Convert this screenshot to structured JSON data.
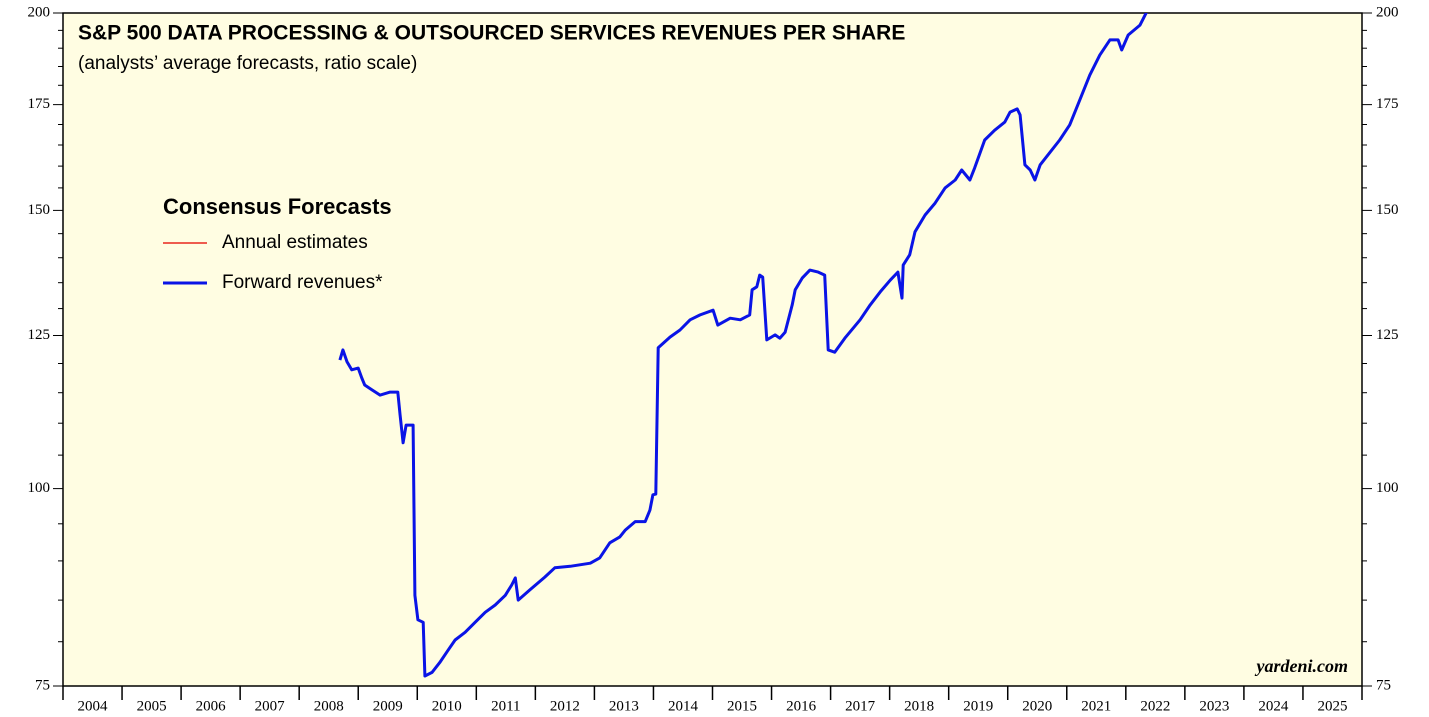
{
  "chart_data": {
    "type": "line",
    "title": "S&P 500 DATA PROCESSING & OUTSOURCED SERVICES REVENUES PER SHARE",
    "subtitle": "(analysts’ average forecasts, ratio scale)",
    "legend_title": "Consensus Forecasts",
    "annotation": "yardeni.com",
    "log_scale": true,
    "ylim": [
      75,
      200
    ],
    "yticks": [
      75,
      100,
      125,
      150,
      175,
      200
    ],
    "yminorticks": [
      80,
      85,
      90,
      95,
      105,
      110,
      115,
      120,
      130,
      135,
      140,
      145,
      155,
      160,
      165,
      170,
      180,
      185,
      190,
      195
    ],
    "xlim": [
      2004,
      2026
    ],
    "xticks": [
      2004,
      2005,
      2006,
      2007,
      2008,
      2009,
      2010,
      2011,
      2012,
      2013,
      2014,
      2015,
      2016,
      2017,
      2018,
      2019,
      2020,
      2021,
      2022,
      2023,
      2024,
      2025,
      2026
    ],
    "categories": [
      "2004",
      "2005",
      "2006",
      "2007",
      "2008",
      "2009",
      "2010",
      "2011",
      "2012",
      "2013",
      "2014",
      "2015",
      "2016",
      "2017",
      "2018",
      "2019",
      "2020",
      "2021",
      "2022",
      "2023",
      "2024",
      "2025"
    ],
    "series": [
      {
        "name": "Annual estimates",
        "color": "#e8261c",
        "x": [],
        "values": []
      },
      {
        "name": "Forward revenues*",
        "color": "#0a14e6",
        "x": [
          2008.69,
          2008.74,
          2008.81,
          2008.89,
          2009.0,
          2009.06,
          2009.11,
          2009.23,
          2009.37,
          2009.54,
          2009.67,
          2009.71,
          2009.76,
          2009.81,
          2009.86,
          2009.93,
          2009.96,
          2010.01,
          2010.1,
          2010.13,
          2010.25,
          2010.38,
          2010.52,
          2010.64,
          2010.81,
          2010.98,
          2011.15,
          2011.32,
          2011.49,
          2011.6,
          2011.66,
          2011.71,
          2011.91,
          2012.16,
          2012.33,
          2012.59,
          2012.93,
          2013.09,
          2013.26,
          2013.43,
          2013.52,
          2013.69,
          2013.86,
          2013.94,
          2013.99,
          2014.04,
          2014.08,
          2014.28,
          2014.45,
          2014.62,
          2014.79,
          2015.01,
          2015.09,
          2015.3,
          2015.47,
          2015.63,
          2015.67,
          2015.75,
          2015.8,
          2015.85,
          2015.92,
          2016.06,
          2016.14,
          2016.23,
          2016.35,
          2016.4,
          2016.52,
          2016.65,
          2016.79,
          2016.9,
          2016.96,
          2017.07,
          2017.24,
          2017.5,
          2017.67,
          2017.84,
          2018.01,
          2018.14,
          2018.21,
          2018.23,
          2018.34,
          2018.43,
          2018.6,
          2018.77,
          2018.94,
          2019.11,
          2019.22,
          2019.36,
          2019.44,
          2019.61,
          2019.78,
          2019.95,
          2020.04,
          2020.16,
          2020.21,
          2020.29,
          2020.38,
          2020.46,
          2020.55,
          2020.72,
          2020.88,
          2021.05,
          2021.22,
          2021.39,
          2021.56,
          2021.73,
          2021.87,
          2021.93,
          2022.04,
          2022.24,
          2022.37,
          2022.58
        ],
        "values": [
          120.6,
          122.4,
          120.3,
          118.9,
          119.2,
          117.5,
          116.3,
          115.5,
          114.6,
          115.1,
          115.1,
          111.3,
          106.9,
          109.7,
          109.7,
          109.7,
          85.6,
          82.6,
          82.3,
          76.1,
          76.5,
          77.6,
          79.0,
          80.2,
          81.1,
          82.3,
          83.5,
          84.4,
          85.6,
          86.9,
          87.8,
          85.0,
          86.3,
          87.9,
          89.1,
          89.3,
          89.7,
          90.4,
          92.4,
          93.2,
          94.1,
          95.3,
          95.3,
          96.9,
          99.1,
          99.2,
          122.8,
          124.7,
          126.0,
          127.9,
          128.8,
          129.7,
          126.9,
          128.2,
          127.9,
          128.8,
          133.6,
          134.2,
          136.5,
          136.1,
          124.2,
          125.1,
          124.5,
          125.6,
          130.7,
          133.6,
          135.9,
          137.5,
          137.1,
          136.5,
          122.4,
          122.0,
          124.5,
          127.9,
          130.7,
          133.2,
          135.5,
          137.1,
          132.0,
          138.5,
          140.6,
          145.4,
          149.0,
          151.6,
          155.0,
          156.8,
          159.1,
          156.8,
          159.6,
          166.2,
          168.6,
          170.6,
          173.1,
          173.9,
          172.4,
          160.3,
          159.1,
          156.8,
          160.3,
          163.3,
          166.2,
          169.9,
          176.2,
          182.7,
          188.1,
          192.3,
          192.3,
          189.5,
          193.7,
          196.5,
          200.9,
          202.9
        ]
      }
    ]
  }
}
